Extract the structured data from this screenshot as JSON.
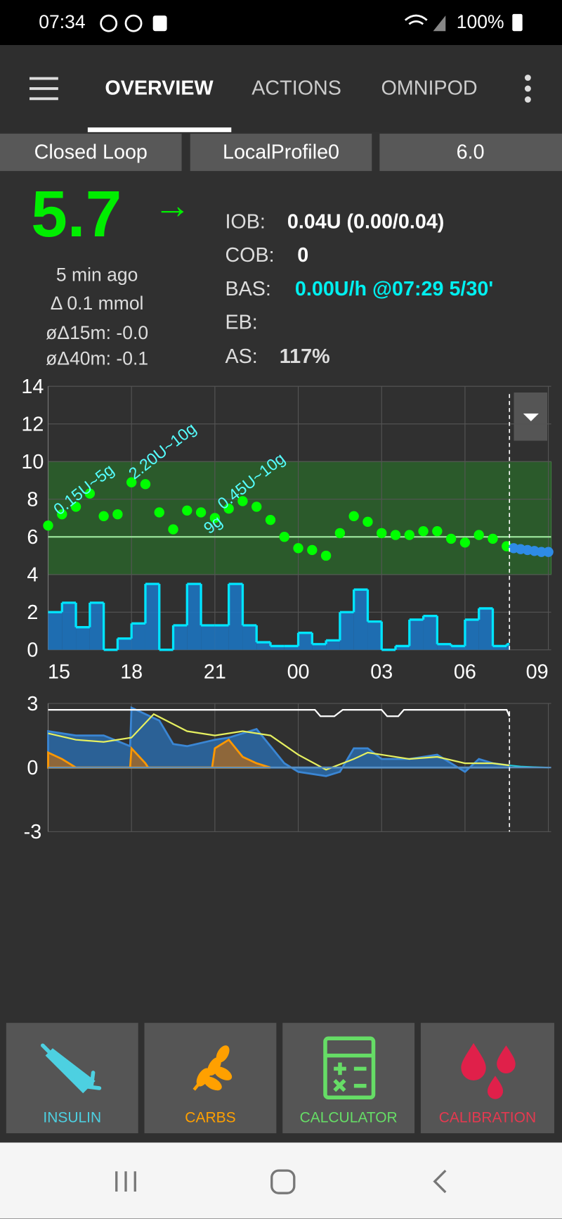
{
  "status_bar": {
    "time": "07:34",
    "battery": "100%"
  },
  "tabs": {
    "items": [
      "OVERVIEW",
      "ACTIONS",
      "OMNIPOD"
    ],
    "active": 0
  },
  "mode_buttons": [
    "Closed Loop",
    "LocalProfile0",
    "6.0"
  ],
  "glucose": {
    "value": "5.7",
    "trend": "→",
    "age": "5 min ago",
    "delta": "Δ 0.1 mmol",
    "avg_delta_15m": "øΔ15m: -0.0",
    "avg_delta_40m": "øΔ40m: -0.1"
  },
  "loop_info": [
    {
      "label": "IOB:",
      "value": "0.04U (0.00/0.04)"
    },
    {
      "label": "COB:",
      "value": "0"
    },
    {
      "label": "BAS:",
      "value": "0.00U/h @07:29 5/30'"
    },
    {
      "label": "EB:"
    },
    {
      "label": "AS:",
      "value": "117%"
    }
  ],
  "chart_data": [
    {
      "type": "scatter",
      "xlim": [
        15,
        33.1
      ],
      "xticks": [
        {
          "value": 15,
          "label": "15"
        },
        {
          "value": 18,
          "label": "18"
        },
        {
          "value": 21,
          "label": "21"
        },
        {
          "value": 24,
          "label": "00"
        },
        {
          "value": 27,
          "label": "03"
        },
        {
          "value": 30,
          "label": "06"
        },
        {
          "value": 33,
          "label": "09"
        }
      ],
      "ylim": [
        0,
        14
      ],
      "yticks": [
        0,
        2,
        4,
        6,
        8,
        10,
        12,
        14
      ],
      "grid": true,
      "target_range": [
        4,
        10
      ],
      "target_line": 6,
      "now": 31.6,
      "series": [
        {
          "style": "dots",
          "color": "#00ff00",
          "x": [
            15,
            15.5,
            16,
            16.5,
            17,
            17.5,
            18,
            18.5,
            19,
            19.5,
            20,
            20.5,
            21,
            21.5,
            22,
            22.5,
            23,
            23.5,
            24,
            24.5,
            25,
            25.5,
            26,
            26.5,
            27,
            27.5,
            28,
            28.5,
            29,
            29.5,
            30,
            30.5,
            31,
            31.5
          ],
          "values": [
            6.6,
            7.2,
            7.6,
            8.3,
            7.1,
            7.2,
            8.9,
            8.8,
            7.3,
            6.4,
            7.4,
            7.3,
            7.0,
            7.5,
            7.9,
            7.6,
            6.9,
            6.0,
            5.4,
            5.3,
            5.0,
            6.2,
            7.1,
            6.8,
            6.2,
            6.1,
            6.1,
            6.3,
            6.3,
            5.9,
            5.7,
            6.1,
            5.9,
            5.5
          ]
        },
        {
          "style": "dots",
          "color": "#2e8be6",
          "x": [
            31.75,
            32,
            32.25,
            32.5,
            32.75,
            33
          ],
          "values": [
            5.4,
            5.35,
            5.3,
            5.25,
            5.2,
            5.2
          ]
        },
        {
          "style": "steps",
          "color": "#00e5ff",
          "fill": "#1b78c8",
          "x": [
            15,
            15.5,
            16,
            16.5,
            17,
            17.5,
            18,
            18.5,
            19,
            19.5,
            20,
            20.5,
            21,
            21.5,
            22,
            22.5,
            23,
            23.5,
            24,
            24.5,
            25,
            25.5,
            26,
            26.5,
            27,
            27.5,
            28,
            28.5,
            29,
            29.5,
            30,
            30.5,
            31,
            31.5
          ],
          "values": [
            2.0,
            2.5,
            1.2,
            2.5,
            0,
            0.6,
            1.4,
            3.5,
            0,
            1.3,
            3.5,
            1.3,
            1.3,
            3.5,
            1.3,
            0.4,
            0.2,
            0.2,
            0.9,
            0.3,
            0.5,
            2.0,
            3.2,
            1.5,
            0,
            0.2,
            1.6,
            1.8,
            0.3,
            0.2,
            1.6,
            2.2,
            0.2,
            0.3
          ]
        }
      ],
      "annotations": [
        {
          "text": "0.15U~5g",
          "x": 15.3,
          "y": 7.3
        },
        {
          "text": "2.20U~10g",
          "x": 18.0,
          "y": 9.2
        },
        {
          "text": "0.45U~10g",
          "x": 21.2,
          "y": 7.6
        },
        {
          "text": "9g",
          "x": 20.7,
          "y": 6.3
        }
      ]
    },
    {
      "type": "area",
      "xlim": [
        15,
        33.1
      ],
      "xticks": [
        15,
        18,
        21,
        24,
        27,
        30,
        33
      ],
      "ylim": [
        -3,
        3
      ],
      "yticks": [
        3,
        0,
        -3
      ],
      "grid": true,
      "now": 31.6,
      "series": [
        {
          "style": "area",
          "color": "#3a86d4",
          "fill": "#2a6aa8",
          "x": [
            15,
            16,
            17,
            17.95,
            18,
            19,
            19.5,
            20,
            21,
            21.5,
            22,
            22.5,
            23,
            23.5,
            24,
            25,
            25.5,
            26,
            26.5,
            27,
            28,
            28.5,
            29,
            29.5,
            30,
            30.5,
            31,
            31.6
          ],
          "values": [
            1.7,
            1.5,
            1.5,
            1.0,
            2.8,
            2.2,
            1.1,
            1.0,
            1.3,
            1.4,
            1.6,
            1.8,
            1.0,
            0.2,
            -0.2,
            -0.4,
            -0.2,
            0.9,
            0.9,
            0.4,
            0.4,
            0.5,
            0.6,
            0.2,
            -0.2,
            0.4,
            0.2,
            0.1
          ]
        },
        {
          "style": "area",
          "color": "#ff9800",
          "fill": "#a0682a",
          "x": [
            15,
            15.5,
            16,
            17.95,
            18,
            18.5,
            18.6,
            20.9,
            21,
            21.5,
            22,
            22.5,
            23
          ],
          "values": [
            0.7,
            0.4,
            0,
            0,
            0.9,
            0.2,
            0,
            0,
            0.9,
            1.3,
            0.5,
            0.2,
            0
          ]
        },
        {
          "style": "line",
          "color": "#e6f060",
          "x": [
            15,
            16,
            17,
            18,
            18.8,
            20,
            21,
            22,
            23,
            24,
            25,
            26,
            26.5,
            27,
            28,
            29,
            30,
            31,
            31.6
          ],
          "values": [
            1.6,
            1.3,
            1.2,
            1.4,
            2.5,
            1.7,
            1.5,
            1.7,
            1.5,
            0.6,
            -0.1,
            0.4,
            0.7,
            0.6,
            0.4,
            0.5,
            0.2,
            0.2,
            0.1
          ]
        },
        {
          "style": "line",
          "color": "#ffffff",
          "x": [
            15,
            24.6,
            24.8,
            25.3,
            25.6,
            27,
            27.2,
            27.6,
            27.8,
            31.5,
            31.6
          ],
          "values": [
            2.7,
            2.7,
            2.4,
            2.4,
            2.7,
            2.7,
            2.4,
            2.4,
            2.7,
            2.7,
            2.4
          ]
        },
        {
          "style": "line",
          "color": "#26c6da",
          "x": [
            31.6,
            32,
            32.5,
            33
          ],
          "values": [
            0.1,
            0.05,
            0.02,
            0.0
          ]
        }
      ]
    }
  ],
  "actions": [
    "INSULIN",
    "CARBS",
    "CALCULATOR",
    "CALIBRATION"
  ]
}
